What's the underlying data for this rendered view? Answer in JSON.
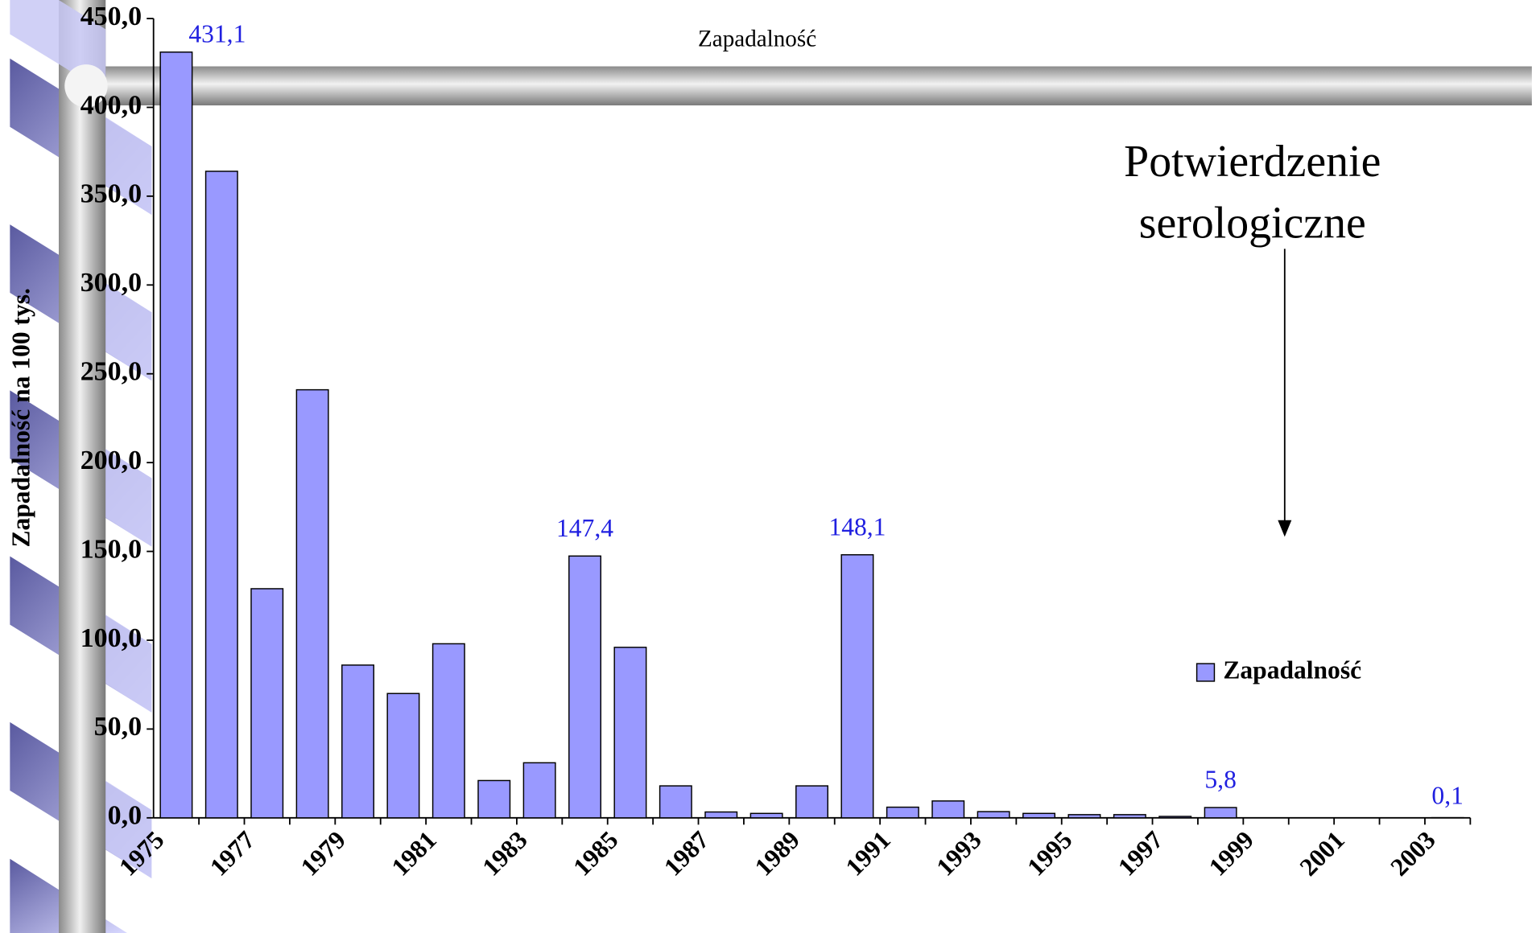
{
  "chart_data": {
    "type": "bar",
    "title": "Zapadalność",
    "y_label": "Zapadalność na 100 tys.",
    "annotation_lines": [
      "Potwierdzenie",
      "serologiczne"
    ],
    "categories": [
      "1975",
      null,
      "1977",
      null,
      "1979",
      null,
      "1981",
      null,
      "1983",
      null,
      "1985",
      null,
      "1987",
      null,
      "1989",
      null,
      "1991",
      null,
      "1993",
      null,
      "1995",
      null,
      "1997",
      null,
      "1999",
      null,
      "2001",
      null,
      "2003"
    ],
    "series": [
      {
        "name": "Zapadalność",
        "color": "#9999ff",
        "values": [
          431.1,
          364,
          129,
          241,
          86,
          70,
          98,
          21,
          31,
          147.4,
          96,
          18,
          3.3,
          2.5,
          18,
          148.1,
          6,
          9.5,
          3.5,
          2.5,
          1.8,
          1.8,
          0.8,
          5.8,
          null,
          null,
          null,
          null,
          0.1
        ],
        "value_labels": [
          "431,1",
          null,
          null,
          null,
          null,
          null,
          null,
          null,
          null,
          "147,4",
          null,
          null,
          null,
          null,
          null,
          "148,1",
          null,
          null,
          null,
          null,
          null,
          null,
          null,
          "5,8",
          null,
          null,
          null,
          null,
          "0,1"
        ]
      }
    ],
    "ylim": [
      0,
      450
    ],
    "yticks": [
      {
        "value": 0,
        "label": "0,0"
      },
      {
        "value": 50,
        "label": "50,0"
      },
      {
        "value": 100,
        "label": "100,0"
      },
      {
        "value": 150,
        "label": "150,0"
      },
      {
        "value": 200,
        "label": "200,0"
      },
      {
        "value": 250,
        "label": "250,0"
      },
      {
        "value": 300,
        "label": "300,0"
      },
      {
        "value": 350,
        "label": "350,0"
      },
      {
        "value": 400,
        "label": "400,0"
      },
      {
        "value": 450,
        "label": "450,0"
      }
    ],
    "legend_position": "right"
  }
}
